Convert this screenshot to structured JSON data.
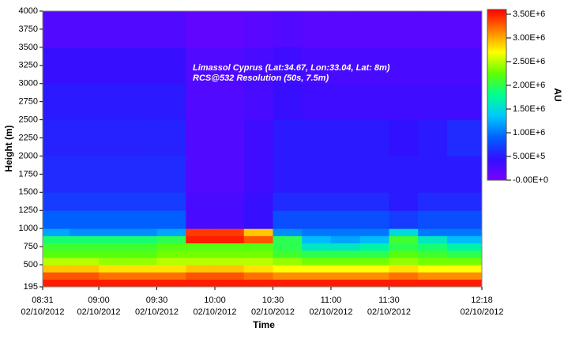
{
  "chart_data": {
    "type": "heatmap",
    "annotations": [
      "Limassol Cyprus (Lat:34.67, Lon:33.04, Lat: 8m)",
      "RCS@532 Resolution (50s, 7.5m)"
    ],
    "x_label": "Time",
    "y_label": "Height (m)",
    "colorbar_label": "AU",
    "xlim": [
      "2012-10-02 08:31",
      "2012-10-02 12:18"
    ],
    "xticks": [
      {
        "value": "2012-10-02 08:31",
        "label": [
          "08:31",
          "02/10/2012"
        ]
      },
      {
        "value": "2012-10-02 09:00",
        "label": [
          "09:00",
          "02/10/2012"
        ]
      },
      {
        "value": "2012-10-02 09:30",
        "label": [
          "09:30",
          "02/10/2012"
        ]
      },
      {
        "value": "2012-10-02 10:00",
        "label": [
          "10:00",
          "02/10/2012"
        ]
      },
      {
        "value": "2012-10-02 10:30",
        "label": [
          "10:30",
          "02/10/2012"
        ]
      },
      {
        "value": "2012-10-02 11:00",
        "label": [
          "11:00",
          "02/10/2012"
        ]
      },
      {
        "value": "2012-10-02 11:30",
        "label": [
          "11:30",
          "02/10/2012"
        ]
      },
      {
        "value": "2012-10-02 12:18",
        "label": [
          "12:18",
          "02/10/2012"
        ]
      }
    ],
    "ylim": [
      195,
      4000
    ],
    "yticks": [
      195,
      500,
      750,
      1000,
      1250,
      1500,
      1750,
      2000,
      2250,
      2500,
      2750,
      3000,
      3250,
      3500,
      3750,
      4000
    ],
    "zlim": [
      0,
      3600000
    ],
    "zticks": [
      {
        "value": 0,
        "label": "-0.00E+0"
      },
      {
        "value": 500000,
        "label": "5.00E+5"
      },
      {
        "value": 1000000,
        "label": "1.00E+6"
      },
      {
        "value": 1500000,
        "label": "1.50E+6"
      },
      {
        "value": 2000000,
        "label": "2.00E+6"
      },
      {
        "value": 2500000,
        "label": "2.50E+6"
      },
      {
        "value": 3000000,
        "label": "3.00E+6"
      },
      {
        "value": 3500000,
        "label": "3.50E+6"
      }
    ],
    "colormap": [
      "#7a00ff",
      "#3010ff",
      "#0060ff",
      "#00c8ff",
      "#00ff90",
      "#60ff00",
      "#ffff00",
      "#ff8000",
      "#ff0000"
    ],
    "x": [
      "2012-10-02 08:31",
      "2012-10-02 08:45",
      "2012-10-02 09:00",
      "2012-10-02 09:15",
      "2012-10-02 09:30",
      "2012-10-02 09:45",
      "2012-10-02 10:00",
      "2012-10-02 10:15",
      "2012-10-02 10:30",
      "2012-10-02 10:45",
      "2012-10-02 11:00",
      "2012-10-02 11:15",
      "2012-10-02 11:30",
      "2012-10-02 11:45",
      "2012-10-02 12:00",
      "2012-10-02 12:18"
    ],
    "y": [
      195,
      300,
      400,
      500,
      600,
      700,
      800,
      900,
      1000,
      1250,
      1500,
      2000,
      2500,
      3000,
      3500,
      4000
    ],
    "z": [
      [
        3500000.0,
        3500000.0,
        3500000.0,
        3500000.0,
        3500000.0,
        3500000.0,
        3500000.0,
        3500000.0,
        3500000.0,
        3500000.0,
        3500000.0,
        3500000.0,
        3500000.0,
        3500000.0,
        3500000.0
      ],
      [
        3300000.0,
        3300000.0,
        3200000.0,
        3200000.0,
        3200000.0,
        3300000.0,
        3300000.0,
        3200000.0,
        3100000.0,
        3100000.0,
        3100000.0,
        3100000.0,
        3200000.0,
        3100000.0,
        3100000.0
      ],
      [
        2900000.0,
        2900000.0,
        2800000.0,
        2800000.0,
        2800000.0,
        2900000.0,
        2900000.0,
        2800000.0,
        2700000.0,
        2700000.0,
        2700000.0,
        2700000.0,
        2800000.0,
        2700000.0,
        2700000.0
      ],
      [
        2500000.0,
        2500000.0,
        2400000.0,
        2400000.0,
        2500000.0,
        2500000.0,
        2500000.0,
        2500000.0,
        2400000.0,
        2300000.0,
        2300000.0,
        2300000.0,
        2400000.0,
        2300000.0,
        2300000.0
      ],
      [
        2200000.0,
        2200000.0,
        2200000.0,
        2200000.0,
        2300000.0,
        2300000.0,
        2300000.0,
        2300000.0,
        2100000.0,
        2000000.0,
        2000000.0,
        2000000.0,
        2200000.0,
        2100000.0,
        2000000.0
      ],
      [
        2100000.0,
        2100000.0,
        2100000.0,
        2100000.0,
        2200000.0,
        2200000.0,
        2200000.0,
        2200000.0,
        2000000.0,
        1600000.0,
        1600000.0,
        1700000.0,
        2000000.0,
        1900000.0,
        1700000.0
      ],
      [
        1900000.0,
        1900000.0,
        1900000.0,
        1900000.0,
        2000000.0,
        3500000.0,
        3500000.0,
        3300000.0,
        2000000.0,
        1300000.0,
        1200000.0,
        1300000.0,
        2100000.0,
        1600000.0,
        1300000.0
      ],
      [
        1200000.0,
        1100000.0,
        1100000.0,
        1100000.0,
        1200000.0,
        3400000.0,
        3400000.0,
        2900000.0,
        1100000.0,
        1000000.0,
        1000000.0,
        1000000.0,
        1500000.0,
        1000000.0,
        1000000.0
      ],
      [
        900000.0,
        900000.0,
        900000.0,
        900000.0,
        900000.0,
        300000.0,
        300000.0,
        400000.0,
        800000.0,
        800000.0,
        800000.0,
        800000.0,
        700000.0,
        800000.0,
        800000.0
      ],
      [
        700000.0,
        700000.0,
        700000.0,
        700000.0,
        700000.0,
        300000.0,
        300000.0,
        400000.0,
        600000.0,
        600000.0,
        600000.0,
        600000.0,
        500000.0,
        600000.0,
        600000.0
      ],
      [
        600000.0,
        600000.0,
        600000.0,
        600000.0,
        600000.0,
        250000.0,
        250000.0,
        350000.0,
        500000.0,
        500000.0,
        500000.0,
        500000.0,
        500000.0,
        500000.0,
        500000.0
      ],
      [
        550000.0,
        550000.0,
        550000.0,
        550000.0,
        550000.0,
        250000.0,
        250000.0,
        350000.0,
        500000.0,
        500000.0,
        500000.0,
        500000.0,
        450000.0,
        500000.0,
        600000.0
      ],
      [
        500000.0,
        500000.0,
        500000.0,
        500000.0,
        500000.0,
        250000.0,
        250000.0,
        300000.0,
        400000.0,
        350000.0,
        350000.0,
        350000.0,
        350000.0,
        350000.0,
        350000.0
      ],
      [
        400000.0,
        400000.0,
        400000.0,
        400000.0,
        400000.0,
        250000.0,
        250000.0,
        300000.0,
        350000.0,
        300000.0,
        300000.0,
        300000.0,
        300000.0,
        300000.0,
        300000.0
      ],
      [
        250000.0,
        250000.0,
        250000.0,
        250000.0,
        250000.0,
        150000.0,
        150000.0,
        200000.0,
        250000.0,
        200000.0,
        200000.0,
        200000.0,
        200000.0,
        200000.0,
        200000.0
      ]
    ]
  }
}
